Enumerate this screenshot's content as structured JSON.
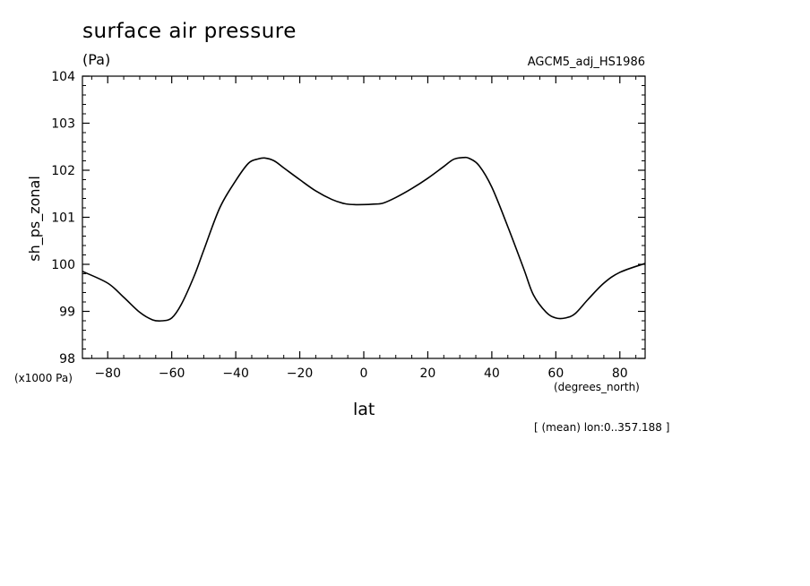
{
  "chart_data": {
    "type": "line",
    "title": "surface air pressure",
    "units": "(Pa)",
    "source": "AGCM5_adj_HS1986",
    "ylabel": "sh_ps_zonal",
    "y_scale_note": "(x1000 Pa)",
    "xlabel": "lat",
    "x_units": "(degrees_north)",
    "subset_note": "[ (mean) lon:0..357.188 ]",
    "xlim": [
      -87.9,
      87.9
    ],
    "ylim": [
      98,
      104
    ],
    "xticks": [
      -80,
      -60,
      -40,
      -20,
      0,
      20,
      40,
      60,
      80
    ],
    "xtick_labels": [
      "−80",
      "−60",
      "−40",
      "−20",
      "0",
      "20",
      "40",
      "60",
      "80"
    ],
    "yticks": [
      98,
      99,
      100,
      101,
      102,
      103,
      104
    ],
    "ytick_labels": [
      "98",
      "99",
      "100",
      "101",
      "102",
      "103",
      "104"
    ],
    "grid": false,
    "series": [
      {
        "x": [
          -87.9,
          -80,
          -75,
          -70,
          -66,
          -63,
          -60,
          -57,
          -53,
          -50,
          -45,
          -40,
          -36,
          -33,
          -31,
          -28,
          -25,
          -20,
          -15,
          -10,
          -6,
          -3,
          0,
          3,
          6,
          10,
          15,
          20,
          25,
          28,
          31,
          33,
          36,
          40,
          45,
          50,
          53,
          57,
          60,
          63,
          66,
          70,
          75,
          80,
          87.9
        ],
        "y": [
          99.85,
          99.6,
          99.3,
          98.98,
          98.82,
          98.8,
          98.86,
          99.15,
          99.75,
          100.3,
          101.2,
          101.78,
          102.15,
          102.24,
          102.26,
          102.2,
          102.05,
          101.8,
          101.56,
          101.38,
          101.29,
          101.27,
          101.27,
          101.28,
          101.3,
          101.42,
          101.61,
          101.83,
          102.08,
          102.23,
          102.27,
          102.25,
          102.1,
          101.64,
          100.8,
          99.9,
          99.35,
          98.98,
          98.86,
          98.86,
          98.95,
          99.25,
          99.6,
          99.83,
          100.02
        ]
      }
    ]
  }
}
